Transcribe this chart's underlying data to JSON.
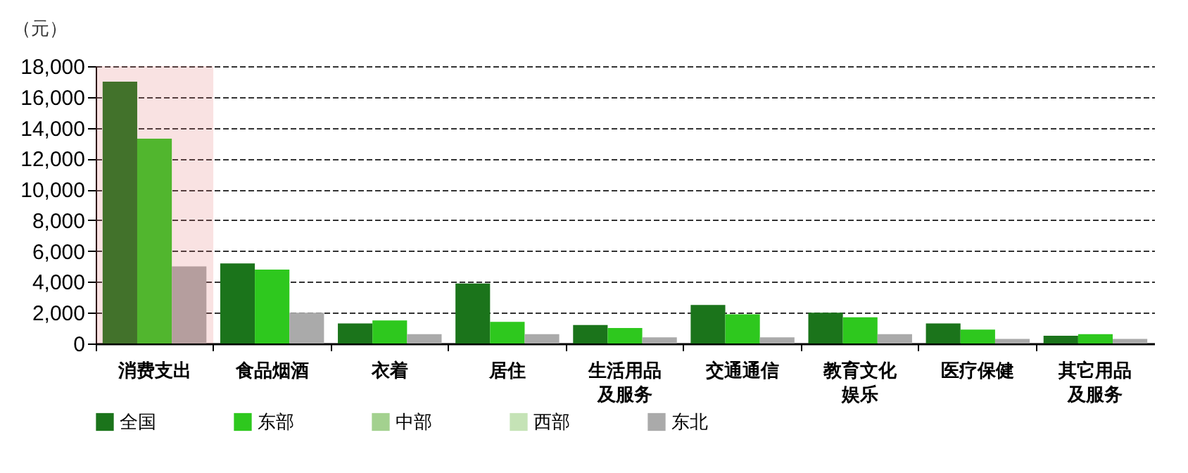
{
  "chart_data": {
    "type": "bar",
    "ylabel": "（元）",
    "categories": [
      "消费支出",
      "食品烟酒",
      "衣着",
      "居住",
      "生活用品及服务",
      "交通通信",
      "教育文化娱乐",
      "医疗保健",
      "其它用品及服务"
    ],
    "series": [
      {
        "name": "全国",
        "color": "#1b741b",
        "values": [
          17000,
          5200,
          1300,
          3900,
          1200,
          2500,
          2000,
          1300,
          500
        ]
      },
      {
        "name": "东部",
        "color": "#2ec81e",
        "values": [
          13300,
          4800,
          1500,
          1400,
          1000,
          1900,
          1700,
          900,
          600
        ]
      },
      {
        "name": "中部",
        "color": "#a3d18f",
        "values": [
          null,
          null,
          null,
          null,
          null,
          null,
          null,
          null,
          null
        ]
      },
      {
        "name": "西部",
        "color": "#c5e3b6",
        "values": [
          null,
          null,
          null,
          null,
          null,
          null,
          null,
          null,
          null
        ]
      },
      {
        "name": "东北",
        "color": "#aaaaaa",
        "values": [
          5000,
          2000,
          600,
          600,
          400,
          400,
          600,
          300,
          300
        ]
      }
    ],
    "ylim": [
      0,
      18000
    ],
    "yticks": [
      0,
      {
        "value": 2000,
        "label": "2,000"
      },
      {
        "value": 4000,
        "label": "4,000"
      },
      {
        "value": 6000,
        "label": "6,000"
      },
      {
        "value": 8000,
        "label": "8,000"
      },
      {
        "value": 10000,
        "label": "10,000"
      },
      {
        "value": 12000,
        "label": "12,000"
      },
      {
        "value": 14000,
        "label": "14,000"
      },
      {
        "value": 16000,
        "label": "16,000"
      },
      {
        "value": 18000,
        "label": "18,000"
      }
    ],
    "grid": "y",
    "legend": "bottom",
    "bands": [
      {
        "axis": "x",
        "from": "消费支出",
        "to": "消费支出",
        "color": "#e07070"
      }
    ]
  }
}
